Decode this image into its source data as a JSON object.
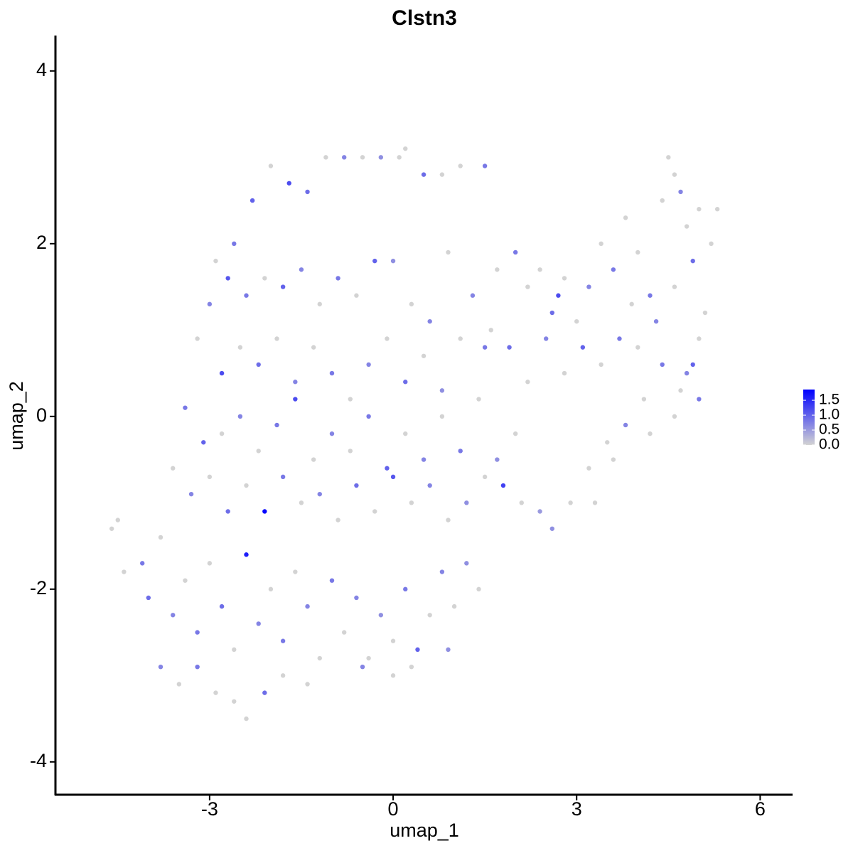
{
  "chart_data": {
    "type": "scatter",
    "title": "Clstn3",
    "x_label": "umap_1",
    "y_label": "umap_2",
    "xlim": [
      -5.52,
      6.53
    ],
    "xticks": [
      -3,
      0,
      3,
      6
    ],
    "ylim": [
      -4.38,
      4.41
    ],
    "yticks": [
      -4,
      -2,
      0,
      2,
      4
    ],
    "low_color": "#d3d3d3",
    "high_color": "#0000ff",
    "color_range": [
      0,
      1.86
    ],
    "color_ticks": [
      {
        "value": 0,
        "label": "0.0"
      },
      {
        "value": 0.5,
        "label": "0.5"
      },
      {
        "value": 1,
        "label": "1.0"
      },
      {
        "value": 1.5,
        "label": "1.5"
      }
    ],
    "x": [
      -2.6,
      -2.3,
      -2.0,
      -1.7,
      -1.4,
      -1.1,
      -0.8,
      -0.5,
      -0.2,
      0.1,
      0.2,
      0.5,
      0.8,
      1.1,
      1.5,
      -2.9,
      -3.0,
      -2.7,
      -2.4,
      -2.1,
      -1.8,
      -1.5,
      -1.2,
      -0.9,
      -0.6,
      -0.3,
      0.0,
      0.3,
      0.6,
      0.9,
      -3.2,
      -2.8,
      -2.5,
      -2.2,
      -1.9,
      -1.6,
      -1.3,
      -1.0,
      -0.7,
      -0.4,
      -0.1,
      0.2,
      0.5,
      0.8,
      1.1,
      -3.4,
      -3.1,
      -2.8,
      -2.5,
      -2.2,
      -1.9,
      -1.6,
      -1.3,
      -1.0,
      -0.7,
      -0.4,
      -0.1,
      0.2,
      0.5,
      0.8,
      1.1,
      1.4,
      1.7,
      2.0,
      -3.6,
      -3.3,
      -3.0,
      -2.7,
      -2.4,
      -2.1,
      -1.8,
      -1.5,
      -1.2,
      -0.9,
      -0.6,
      -0.3,
      0.0,
      0.3,
      0.6,
      0.9,
      1.2,
      1.5,
      1.8,
      2.1,
      2.4,
      -4.6,
      -4.5,
      -4.4,
      -4.1,
      -4.0,
      -3.8,
      -3.6,
      -3.4,
      -3.2,
      -3.0,
      -2.8,
      -2.6,
      -2.4,
      -2.2,
      -2.0,
      -1.8,
      -1.6,
      -1.4,
      -1.2,
      -1.0,
      -0.8,
      -0.6,
      -0.4,
      -0.2,
      0.0,
      0.2,
      0.4,
      0.6,
      0.8,
      1.0,
      1.2,
      1.4,
      -3.8,
      -3.5,
      -3.2,
      -2.9,
      -2.6,
      -2.4,
      -2.1,
      -1.8,
      -1.4,
      0.0,
      -0.5,
      0.9,
      0.3,
      2.0,
      2.2,
      2.4,
      2.6,
      2.8,
      3.0,
      3.2,
      3.4,
      3.6,
      3.8,
      4.0,
      4.2,
      4.4,
      4.5,
      4.6,
      4.8,
      5.0,
      5.2,
      5.3,
      4.7,
      4.9,
      5.1,
      4.6,
      4.3,
      4.0,
      3.7,
      3.4,
      3.1,
      2.8,
      2.5,
      2.2,
      1.9,
      1.6,
      1.3,
      1.7,
      4.9,
      5.0,
      4.7,
      4.4,
      4.1,
      3.8,
      3.5,
      3.2,
      2.9,
      2.6,
      3.3,
      3.6,
      4.2,
      4.6,
      5.0,
      2.7,
      1.5,
      3.9,
      4.8
    ],
    "y": [
      2.0,
      2.5,
      2.9,
      2.7,
      2.6,
      3.0,
      3.0,
      3.0,
      3.0,
      3.0,
      3.1,
      2.8,
      2.8,
      2.9,
      2.9,
      1.8,
      1.3,
      1.6,
      1.4,
      1.6,
      1.5,
      1.7,
      1.3,
      1.6,
      1.4,
      1.8,
      1.8,
      1.3,
      1.1,
      1.9,
      0.9,
      0.5,
      0.8,
      0.6,
      0.9,
      0.4,
      0.8,
      0.5,
      0.2,
      0.6,
      0.9,
      0.4,
      0.7,
      0.3,
      0.9,
      0.1,
      -0.3,
      -0.2,
      0.0,
      -0.4,
      -0.1,
      0.2,
      -0.5,
      -0.2,
      -0.4,
      0.0,
      -0.6,
      -0.2,
      -0.5,
      0.0,
      -0.4,
      0.2,
      -0.5,
      -0.2,
      -0.6,
      -0.9,
      -0.7,
      -1.1,
      -0.8,
      -1.1,
      -0.7,
      -1.0,
      -0.9,
      -1.2,
      -0.8,
      -1.1,
      -0.7,
      -1.0,
      -0.8,
      -1.2,
      -1.0,
      -0.7,
      -0.8,
      -1.0,
      -1.1,
      -1.3,
      -1.2,
      -1.8,
      -1.7,
      -2.1,
      -1.4,
      -2.3,
      -1.9,
      -2.5,
      -1.7,
      -2.2,
      -2.7,
      -1.6,
      -2.4,
      -2.0,
      -2.6,
      -1.8,
      -2.2,
      -2.8,
      -1.9,
      -2.5,
      -2.1,
      -2.8,
      -2.3,
      -2.6,
      -2.0,
      -2.7,
      -2.3,
      -1.8,
      -2.2,
      -1.7,
      -2.0,
      -2.9,
      -3.1,
      -2.9,
      -3.2,
      -3.3,
      -3.5,
      -3.2,
      -3.0,
      -3.1,
      -3.0,
      -2.9,
      -2.7,
      -2.9,
      1.9,
      1.5,
      1.7,
      1.2,
      1.6,
      1.1,
      1.5,
      2.0,
      1.7,
      2.3,
      1.9,
      1.4,
      2.5,
      3.0,
      2.8,
      2.2,
      2.4,
      2.0,
      2.4,
      2.6,
      1.8,
      1.2,
      1.5,
      1.1,
      0.8,
      0.9,
      0.6,
      0.8,
      0.5,
      0.9,
      0.4,
      0.8,
      1.0,
      1.4,
      1.7,
      0.6,
      0.9,
      0.3,
      0.6,
      0.2,
      -0.1,
      -0.3,
      -0.6,
      -1.0,
      -1.3,
      -1.0,
      -0.5,
      -0.2,
      0.0,
      0.2,
      1.4,
      0.8,
      1.3,
      0.5
    ],
    "values": [
      0.8,
      1.0,
      0,
      1.2,
      0.9,
      0,
      0.7,
      0,
      0.6,
      0,
      0,
      0.9,
      0,
      0,
      0.8,
      0,
      0.7,
      1.1,
      0.8,
      0,
      1.0,
      0.7,
      0,
      0.8,
      0,
      1.0,
      0.6,
      0,
      0.7,
      0,
      0,
      1.2,
      0,
      0.9,
      0,
      0.7,
      0,
      0.8,
      0,
      0.7,
      0,
      0.9,
      0,
      0.6,
      0,
      0.8,
      1.0,
      0,
      0.7,
      0,
      0.8,
      1.2,
      0,
      0.7,
      0,
      0.8,
      1.0,
      0,
      0.7,
      0,
      0.8,
      0,
      0.6,
      0,
      0,
      0.7,
      0,
      0.9,
      0,
      1.8,
      0.8,
      0,
      0.7,
      0,
      0.9,
      0,
      1.1,
      0,
      0.7,
      0,
      0.6,
      0,
      1.3,
      0,
      0.5,
      0,
      0,
      0,
      0.8,
      0.9,
      0,
      0.7,
      0,
      0.8,
      0,
      0.9,
      0,
      1.6,
      0.7,
      0,
      0.8,
      0,
      0.7,
      0,
      0.8,
      0,
      0.7,
      0,
      0.6,
      0,
      0.8,
      1.0,
      0,
      0.7,
      0,
      0.6,
      0,
      0.7,
      0,
      0.8,
      0,
      0,
      0,
      0.9,
      0,
      0,
      0,
      0.7,
      0.6,
      0,
      0.8,
      0,
      0,
      0.9,
      0,
      0,
      0.7,
      0,
      0.8,
      0,
      0,
      0.8,
      0,
      0,
      0,
      0,
      0,
      0,
      0,
      0.7,
      0.9,
      0,
      0,
      0.7,
      0,
      0.8,
      0,
      1.0,
      0,
      0.7,
      0,
      0.9,
      0,
      0.7,
      0,
      1.0,
      0,
      0,
      0.8,
      0,
      0.7,
      0,
      0,
      0,
      0.6,
      0,
      0,
      0,
      0,
      0.8,
      1.2,
      0.8,
      0,
      0.7
    ]
  }
}
